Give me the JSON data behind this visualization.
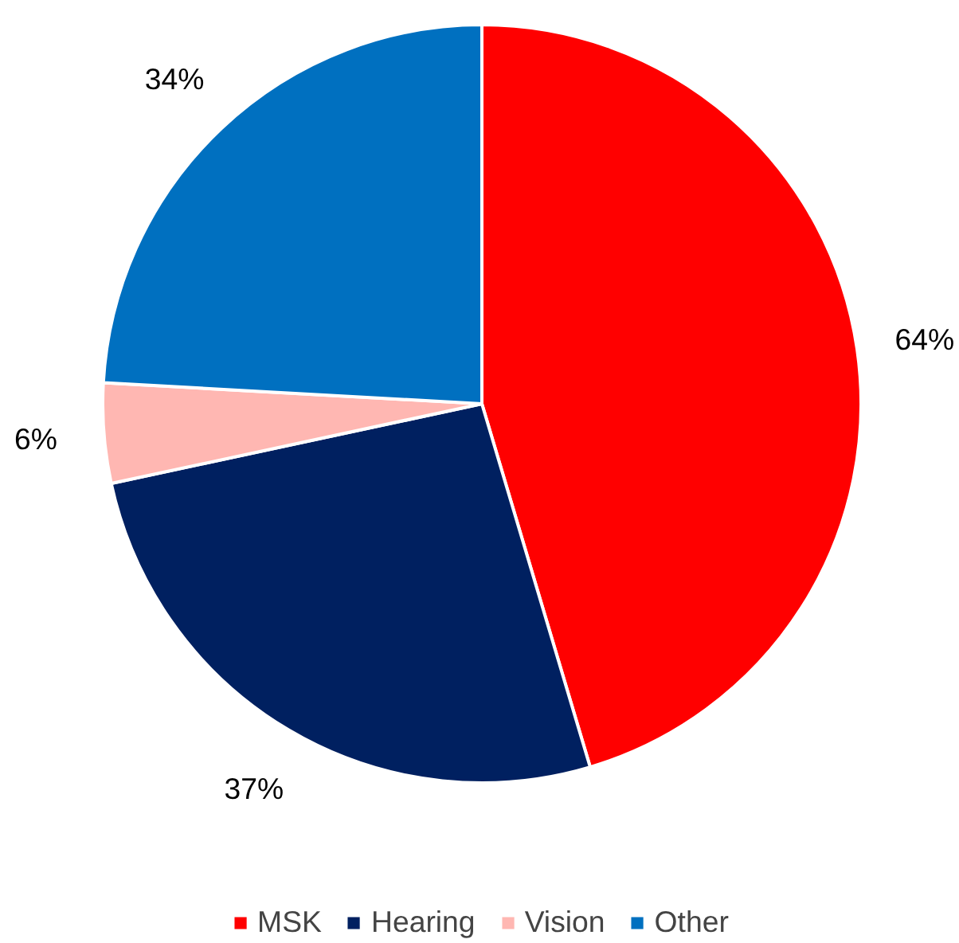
{
  "chart_data": {
    "type": "pie",
    "categories": [
      "MSK",
      "Hearing",
      "Vision",
      "Other"
    ],
    "values": [
      64,
      37,
      6,
      34
    ],
    "colors": [
      "#ff0000",
      "#002060",
      "#ffb7b2",
      "#0070c0"
    ],
    "value_labels": [
      "64%",
      "37%",
      "6%",
      "34%"
    ],
    "legend": "bottom"
  }
}
